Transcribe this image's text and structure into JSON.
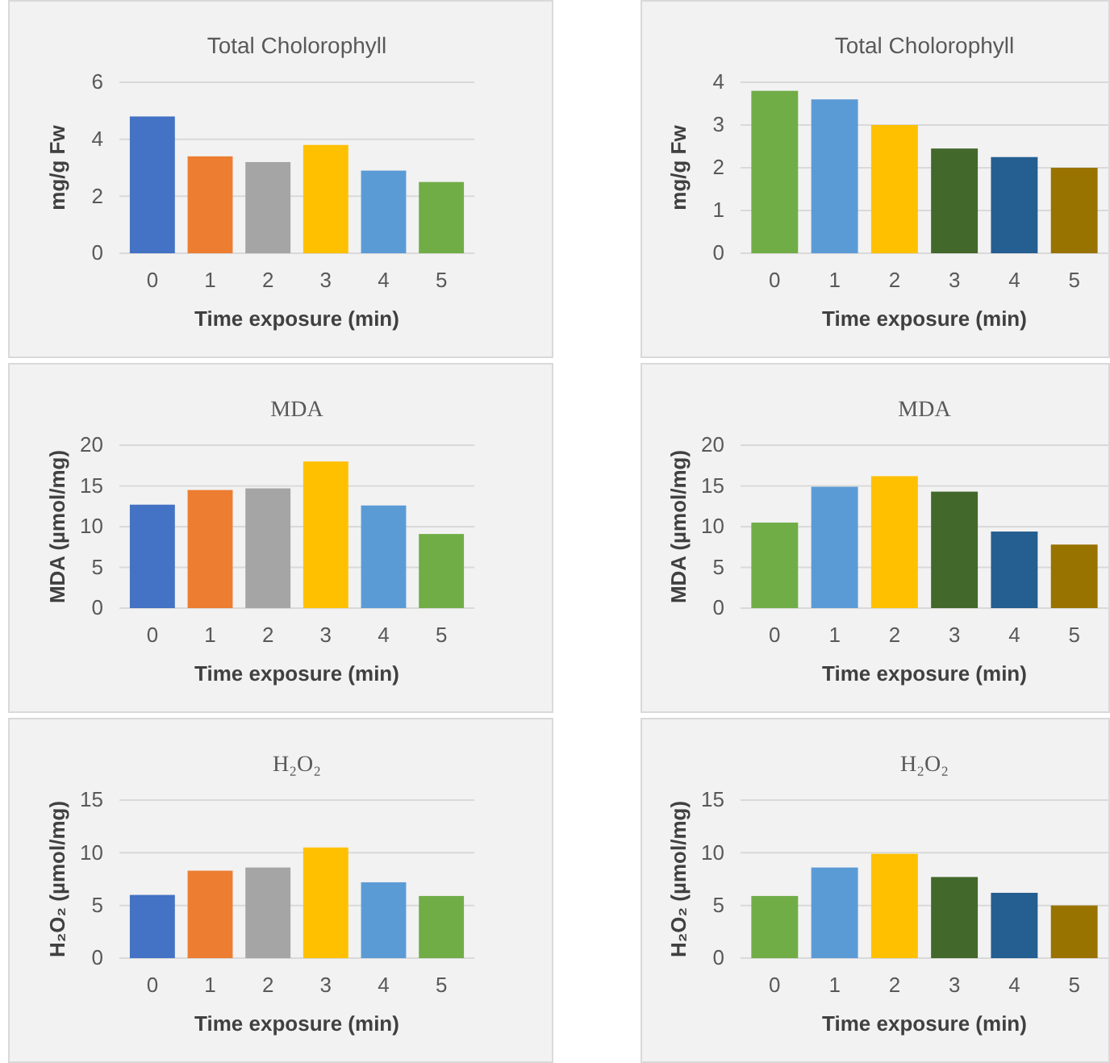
{
  "chart_data": [
    {
      "type": "bar",
      "title": "Total Cholorophyll",
      "xlabel": "Time exposure (min)",
      "ylabel": "mg/g Fw",
      "categories": [
        "0",
        "1",
        "2",
        "3",
        "4",
        "5"
      ],
      "values": [
        4.8,
        3.4,
        3.2,
        3.8,
        2.9,
        2.5
      ],
      "colors": [
        "#4472c4",
        "#ed7d31",
        "#a5a5a5",
        "#ffc000",
        "#5b9bd5",
        "#70ad47"
      ],
      "ylim": [
        0,
        6
      ],
      "yticks": [
        0,
        2,
        4,
        6
      ],
      "grid": "y"
    },
    {
      "type": "bar",
      "title": "Total Cholorophyll",
      "xlabel": "Time exposure (min)",
      "ylabel": "mg/g Fw",
      "categories": [
        "0",
        "1",
        "2",
        "3",
        "4",
        "5"
      ],
      "values": [
        3.8,
        3.6,
        3.0,
        2.45,
        2.25,
        2.0
      ],
      "colors": [
        "#70ad47",
        "#5b9bd5",
        "#ffc000",
        "#43682b",
        "#255e91",
        "#997300"
      ],
      "ylim": [
        0,
        4
      ],
      "yticks": [
        0,
        1,
        2,
        3,
        4
      ],
      "grid": "y"
    },
    {
      "type": "bar",
      "title": "MDA",
      "xlabel": "Time exposure (min)",
      "ylabel": "MDA (µmol/mg)",
      "categories": [
        "0",
        "1",
        "2",
        "3",
        "4",
        "5"
      ],
      "values": [
        12.7,
        14.5,
        14.7,
        18.0,
        12.6,
        9.1
      ],
      "colors": [
        "#4472c4",
        "#ed7d31",
        "#a5a5a5",
        "#ffc000",
        "#5b9bd5",
        "#70ad47"
      ],
      "ylim": [
        0,
        20
      ],
      "yticks": [
        0,
        5,
        10,
        15,
        20
      ],
      "grid": "y"
    },
    {
      "type": "bar",
      "title": "MDA",
      "xlabel": "Time exposure (min)",
      "ylabel": "MDA (µmol/mg)",
      "categories": [
        "0",
        "1",
        "2",
        "3",
        "4",
        "5"
      ],
      "values": [
        10.5,
        14.9,
        16.2,
        14.3,
        9.4,
        7.8
      ],
      "colors": [
        "#70ad47",
        "#5b9bd5",
        "#ffc000",
        "#43682b",
        "#255e91",
        "#997300"
      ],
      "ylim": [
        0,
        20
      ],
      "yticks": [
        0,
        5,
        10,
        15,
        20
      ],
      "grid": "y"
    },
    {
      "type": "bar",
      "title": "H₂O₂",
      "xlabel": "Time exposure (min)",
      "ylabel": "H₂O₂ (µmol/mg)",
      "categories": [
        "0",
        "1",
        "2",
        "3",
        "4",
        "5"
      ],
      "values": [
        6.0,
        8.3,
        8.6,
        10.5,
        7.2,
        5.9
      ],
      "colors": [
        "#4472c4",
        "#ed7d31",
        "#a5a5a5",
        "#ffc000",
        "#5b9bd5",
        "#70ad47"
      ],
      "ylim": [
        0,
        15
      ],
      "yticks": [
        0,
        5,
        10,
        15
      ],
      "grid": "y"
    },
    {
      "type": "bar",
      "title": "H₂O₂",
      "xlabel": "Time exposure (min)",
      "ylabel": "H₂O₂ (µmol/mg)",
      "categories": [
        "0",
        "1",
        "2",
        "3",
        "4",
        "5"
      ],
      "values": [
        5.9,
        8.6,
        9.9,
        7.7,
        6.2,
        5.0
      ],
      "colors": [
        "#70ad47",
        "#5b9bd5",
        "#ffc000",
        "#43682b",
        "#255e91",
        "#997300"
      ],
      "ylim": [
        0,
        15
      ],
      "yticks": [
        0,
        5,
        10,
        15
      ],
      "grid": "y"
    }
  ]
}
